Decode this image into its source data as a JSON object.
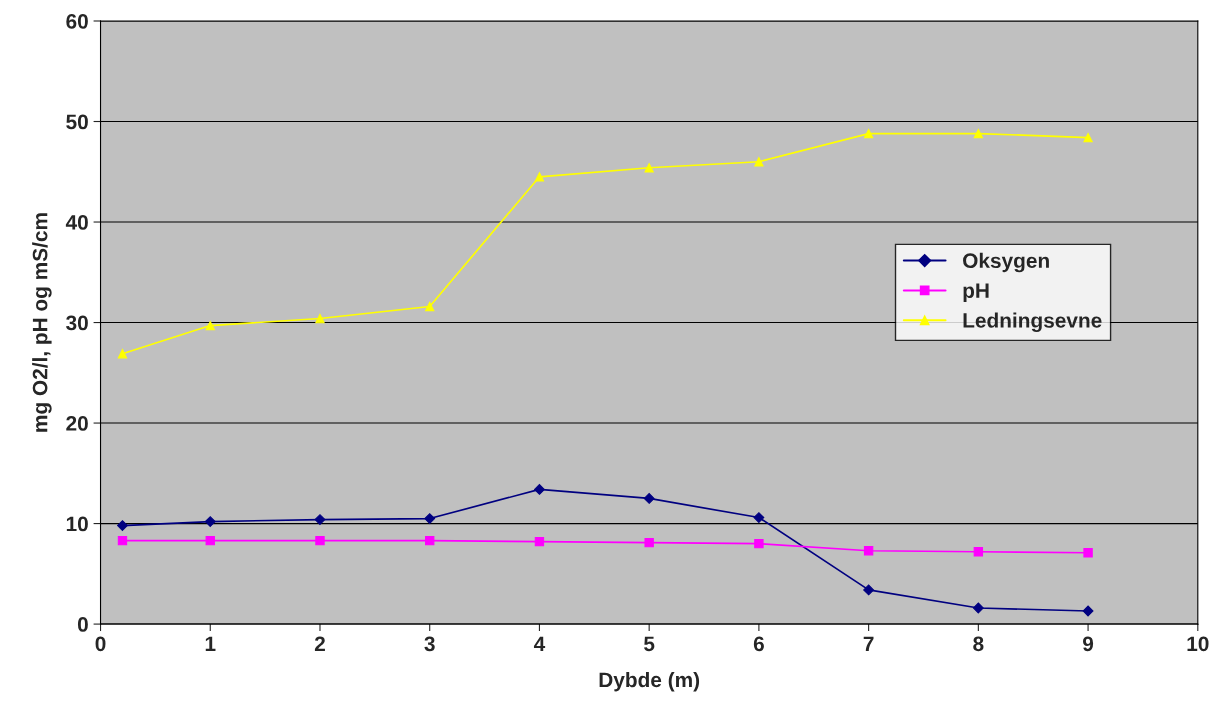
{
  "chart_data": {
    "type": "line",
    "xlabel": "Dybde (m)",
    "ylabel": "mg O2/l, pH og mS/cm",
    "x": [
      0.2,
      1,
      2,
      3,
      4,
      5,
      6,
      7,
      8,
      9
    ],
    "series": [
      {
        "name": "Oksygen",
        "color": "#000080",
        "marker": "diamond",
        "values": [
          9.8,
          10.2,
          10.4,
          10.5,
          13.4,
          12.5,
          10.6,
          3.4,
          1.6,
          1.3
        ]
      },
      {
        "name": "pH",
        "color": "#ff00ff",
        "marker": "square",
        "values": [
          8.3,
          8.3,
          8.3,
          8.3,
          8.2,
          8.1,
          8.0,
          7.3,
          7.2,
          7.1
        ]
      },
      {
        "name": "Ledningsevne",
        "color": "#ffff00",
        "marker": "triangle",
        "values": [
          26.9,
          29.7,
          30.4,
          31.6,
          44.5,
          45.4,
          46.0,
          48.8,
          48.8,
          48.4
        ]
      }
    ],
    "xlim": [
      0,
      10
    ],
    "xticks": [
      0,
      1,
      2,
      3,
      4,
      5,
      6,
      7,
      8,
      9,
      10
    ],
    "ylim": [
      0,
      60
    ],
    "yticks": [
      0,
      10,
      20,
      30,
      40,
      50,
      60
    ],
    "grid": "y",
    "legend": "right"
  }
}
